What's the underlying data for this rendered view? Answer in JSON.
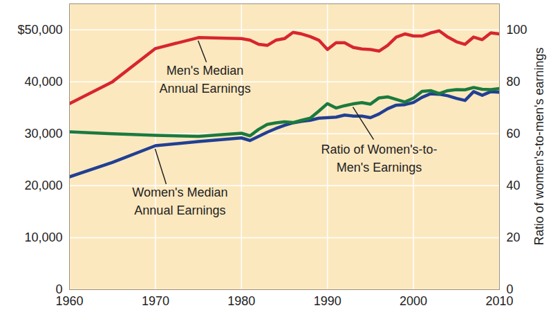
{
  "chart_data": {
    "type": "line",
    "x": [
      1960,
      1965,
      1970,
      1975,
      1980,
      1981,
      1982,
      1983,
      1984,
      1985,
      1986,
      1987,
      1988,
      1989,
      1990,
      1991,
      1992,
      1993,
      1994,
      1995,
      1996,
      1997,
      1998,
      1999,
      2000,
      2001,
      2002,
      2003,
      2004,
      2005,
      2006,
      2007,
      2008,
      2009,
      2010
    ],
    "xlim": [
      1960,
      2010
    ],
    "xticks": [
      1960,
      1970,
      1980,
      1990,
      2000,
      2010
    ],
    "ylim": [
      0,
      55000
    ],
    "yticks": [
      0,
      {
        "value": 10000,
        "label": "10,000"
      },
      {
        "value": 20000,
        "label": "20,000"
      },
      {
        "value": 30000,
        "label": "30,000"
      },
      {
        "value": 40000,
        "label": "40,000"
      },
      {
        "value": 50000,
        "label": "$50,000"
      }
    ],
    "y2lim": [
      0,
      110
    ],
    "y2ticks": [
      0,
      20,
      40,
      60,
      80,
      100
    ],
    "y2_label": "Ratio of women's-to-men's earnings",
    "grid": true,
    "series": [
      {
        "name": "Men's Median Annual Earnings",
        "color": "#d7262e",
        "values": [
          35800,
          40000,
          46400,
          48500,
          48300,
          48000,
          47200,
          47000,
          48000,
          48300,
          49500,
          49200,
          48700,
          48000,
          46200,
          47500,
          47500,
          46600,
          46300,
          46200,
          45900,
          47000,
          48600,
          49200,
          48800,
          48800,
          49400,
          49800,
          48600,
          47700,
          47200,
          48600,
          48100,
          49400,
          49200
        ]
      },
      {
        "name": "Women's Median Annual Earnings",
        "color": "#213f93",
        "values": [
          21700,
          24500,
          27700,
          28500,
          29200,
          28700,
          29500,
          30300,
          31000,
          31600,
          32100,
          32400,
          32600,
          33000,
          33100,
          33200,
          33600,
          33400,
          33400,
          33100,
          33800,
          34800,
          35500,
          35600,
          36000,
          37000,
          37700,
          37600,
          37300,
          36800,
          36400,
          38100,
          37400,
          38100,
          38000
        ]
      },
      {
        "name": "Ratio of Women's-to-Men's Earnings",
        "color": "#1b7a3e",
        "axis": "y2",
        "values": [
          60.7,
          60.0,
          59.4,
          59.0,
          60.2,
          59.2,
          61.7,
          63.6,
          64.2,
          64.6,
          64.3,
          65.2,
          66.0,
          68.7,
          71.6,
          69.9,
          70.8,
          71.5,
          72.0,
          71.4,
          73.8,
          74.2,
          73.2,
          72.2,
          73.7,
          76.3,
          76.6,
          75.5,
          76.6,
          77.0,
          76.9,
          77.8,
          77.1,
          77.0,
          77.4
        ]
      }
    ]
  }
}
